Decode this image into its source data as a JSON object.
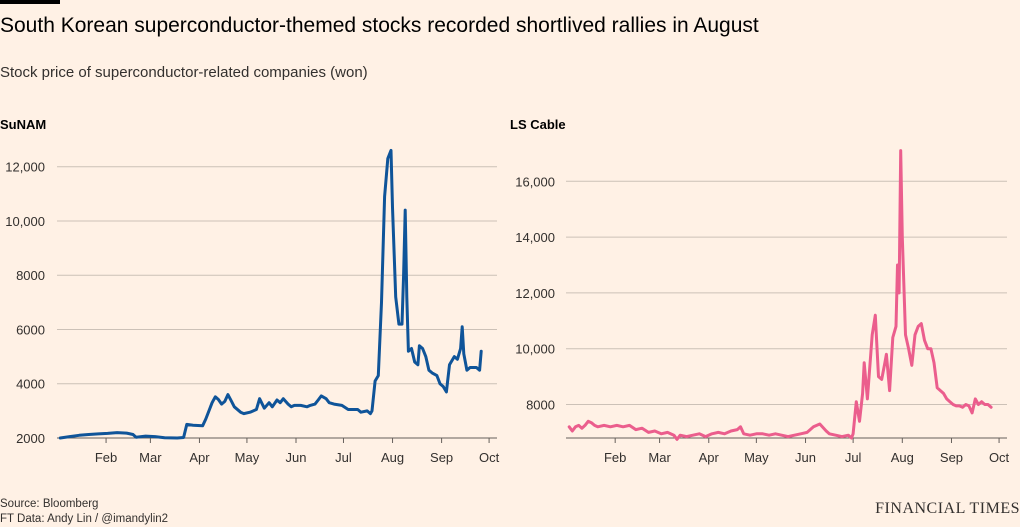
{
  "title": "South Korean superconductor-themed stocks recorded shortlived rallies in August",
  "subtitle": "Stock price of superconductor-related companies (won)",
  "source": "Source: Bloomberg",
  "credit": "FT Data: Andy Lin / @imandylin2",
  "brand": "FINANCIAL TIMES",
  "colors": {
    "background": "#fff1e5",
    "sunam": "#0f5499",
    "lscable": "#eb5e8d",
    "grid": "#ccc1b7"
  },
  "chart_data": [
    {
      "type": "line",
      "title": "SuNAM",
      "x_ticks": [
        {
          "label": "Feb",
          "day": 31
        },
        {
          "label": "Mar",
          "day": 59
        },
        {
          "label": "Apr",
          "day": 90
        },
        {
          "label": "May",
          "day": 120
        },
        {
          "label": "Jun",
          "day": 151
        },
        {
          "label": "Jul",
          "day": 181
        },
        {
          "label": "Aug",
          "day": 212
        },
        {
          "label": "Sep",
          "day": 243
        },
        {
          "label": "Oct",
          "day": 273
        }
      ],
      "xlim": [
        0,
        278
      ],
      "ylim": [
        2000,
        12800
      ],
      "y_ticks": [
        2000,
        4000,
        6000,
        8000,
        10000,
        12000
      ],
      "y_tick_labels": [
        "2000",
        "4000",
        "6000",
        "8000",
        "10,000",
        "12,000"
      ],
      "series": [
        {
          "color": "#0f5499",
          "points": [
            [
              2,
              2000
            ],
            [
              8,
              2050
            ],
            [
              14,
              2100
            ],
            [
              20,
              2130
            ],
            [
              26,
              2150
            ],
            [
              32,
              2170
            ],
            [
              38,
              2200
            ],
            [
              44,
              2180
            ],
            [
              48,
              2130
            ],
            [
              50,
              2030
            ],
            [
              56,
              2070
            ],
            [
              62,
              2050
            ],
            [
              68,
              2010
            ],
            [
              76,
              2000
            ],
            [
              80,
              2020
            ],
            [
              82,
              2500
            ],
            [
              86,
              2470
            ],
            [
              92,
              2450
            ],
            [
              94,
              2700
            ],
            [
              98,
              3300
            ],
            [
              100,
              3520
            ],
            [
              102,
              3420
            ],
            [
              104,
              3250
            ],
            [
              106,
              3350
            ],
            [
              108,
              3600
            ],
            [
              110,
              3380
            ],
            [
              112,
              3150
            ],
            [
              116,
              2950
            ],
            [
              118,
              2900
            ],
            [
              122,
              2950
            ],
            [
              126,
              3050
            ],
            [
              128,
              3450
            ],
            [
              131,
              3100
            ],
            [
              134,
              3300
            ],
            [
              136,
              3150
            ],
            [
              139,
              3400
            ],
            [
              141,
              3300
            ],
            [
              143,
              3450
            ],
            [
              146,
              3250
            ],
            [
              148,
              3150
            ],
            [
              150,
              3200
            ],
            [
              154,
              3200
            ],
            [
              158,
              3150
            ],
            [
              160,
              3200
            ],
            [
              163,
              3250
            ],
            [
              165,
              3400
            ],
            [
              167,
              3550
            ],
            [
              170,
              3450
            ],
            [
              172,
              3300
            ],
            [
              175,
              3250
            ],
            [
              180,
              3200
            ],
            [
              184,
              3050
            ],
            [
              186,
              3050
            ],
            [
              190,
              3050
            ],
            [
              192,
              2950
            ],
            [
              196,
              3000
            ],
            [
              198,
              2900
            ],
            [
              199,
              3000
            ],
            [
              201,
              4100
            ],
            [
              203,
              4300
            ],
            [
              205,
              7000
            ],
            [
              207,
              10900
            ],
            [
              208,
              11600
            ],
            [
              209,
              12300
            ],
            [
              211,
              12600
            ],
            [
              212,
              10500
            ],
            [
              214,
              7200
            ],
            [
              216,
              6200
            ],
            [
              218,
              6200
            ],
            [
              219,
              8000
            ],
            [
              220,
              10400
            ],
            [
              221,
              7200
            ],
            [
              222,
              5200
            ],
            [
              224,
              5300
            ],
            [
              226,
              4800
            ],
            [
              228,
              4700
            ],
            [
              229,
              5400
            ],
            [
              231,
              5300
            ],
            [
              233,
              5000
            ],
            [
              235,
              4500
            ],
            [
              237,
              4400
            ],
            [
              240,
              4300
            ],
            [
              242,
              4000
            ],
            [
              244,
              3900
            ],
            [
              246,
              3700
            ],
            [
              248,
              4700
            ],
            [
              251,
              5000
            ],
            [
              253,
              4900
            ],
            [
              255,
              5300
            ],
            [
              256,
              6100
            ],
            [
              257,
              5100
            ],
            [
              259,
              4500
            ],
            [
              261,
              4600
            ],
            [
              263,
              4600
            ],
            [
              265,
              4600
            ],
            [
              267,
              4500
            ],
            [
              268,
              5200
            ]
          ]
        }
      ]
    },
    {
      "type": "line",
      "title": "LS Cable",
      "x_ticks": [
        {
          "label": "Feb",
          "day": 31
        },
        {
          "label": "Mar",
          "day": 59
        },
        {
          "label": "Apr",
          "day": 90
        },
        {
          "label": "May",
          "day": 120
        },
        {
          "label": "Jun",
          "day": 151
        },
        {
          "label": "Jul",
          "day": 181
        },
        {
          "label": "Aug",
          "day": 212
        },
        {
          "label": "Sep",
          "day": 243
        },
        {
          "label": "Oct",
          "day": 273
        }
      ],
      "xlim": [
        0,
        278
      ],
      "ylim": [
        6800,
        17300
      ],
      "y_ticks": [
        8000,
        10000,
        12000,
        14000,
        16000
      ],
      "y_tick_labels": [
        "8000",
        "10,000",
        "12,000",
        "14,000",
        "16,000"
      ],
      "series": [
        {
          "color": "#eb5e8d",
          "points": [
            [
              2,
              7200
            ],
            [
              4,
              7050
            ],
            [
              6,
              7200
            ],
            [
              8,
              7250
            ],
            [
              10,
              7150
            ],
            [
              12,
              7250
            ],
            [
              14,
              7400
            ],
            [
              16,
              7350
            ],
            [
              18,
              7250
            ],
            [
              20,
              7200
            ],
            [
              24,
              7250
            ],
            [
              28,
              7200
            ],
            [
              32,
              7250
            ],
            [
              36,
              7200
            ],
            [
              40,
              7250
            ],
            [
              44,
              7100
            ],
            [
              48,
              7150
            ],
            [
              52,
              7000
            ],
            [
              56,
              7050
            ],
            [
              60,
              6950
            ],
            [
              64,
              7000
            ],
            [
              68,
              6900
            ],
            [
              70,
              6750
            ],
            [
              72,
              6900
            ],
            [
              76,
              6850
            ],
            [
              80,
              6900
            ],
            [
              84,
              6950
            ],
            [
              88,
              6850
            ],
            [
              92,
              6950
            ],
            [
              96,
              7000
            ],
            [
              100,
              6950
            ],
            [
              104,
              7050
            ],
            [
              108,
              7100
            ],
            [
              110,
              7200
            ],
            [
              112,
              6950
            ],
            [
              116,
              6900
            ],
            [
              120,
              6950
            ],
            [
              124,
              6950
            ],
            [
              128,
              6900
            ],
            [
              132,
              6950
            ],
            [
              136,
              6900
            ],
            [
              140,
              6850
            ],
            [
              144,
              6900
            ],
            [
              148,
              6950
            ],
            [
              152,
              7000
            ],
            [
              156,
              7200
            ],
            [
              160,
              7300
            ],
            [
              164,
              7050
            ],
            [
              166,
              6950
            ],
            [
              170,
              6900
            ],
            [
              174,
              6850
            ],
            [
              178,
              6900
            ],
            [
              180,
              6800
            ],
            [
              181,
              6950
            ],
            [
              183,
              8100
            ],
            [
              185,
              7400
            ],
            [
              187,
              8400
            ],
            [
              188,
              9500
            ],
            [
              190,
              8200
            ],
            [
              193,
              10500
            ],
            [
              195,
              11200
            ],
            [
              197,
              9000
            ],
            [
              199,
              8900
            ],
            [
              201,
              9500
            ],
            [
              202,
              9800
            ],
            [
              204,
              8500
            ],
            [
              206,
              10400
            ],
            [
              208,
              10800
            ],
            [
              209,
              13000
            ],
            [
              210,
              12000
            ],
            [
              211,
              17100
            ],
            [
              212,
              14000
            ],
            [
              214,
              10500
            ],
            [
              216,
              10000
            ],
            [
              218,
              9400
            ],
            [
              220,
              10500
            ],
            [
              222,
              10800
            ],
            [
              224,
              10900
            ],
            [
              226,
              10300
            ],
            [
              228,
              10000
            ],
            [
              230,
              10000
            ],
            [
              232,
              9500
            ],
            [
              234,
              8600
            ],
            [
              236,
              8500
            ],
            [
              238,
              8400
            ],
            [
              240,
              8200
            ],
            [
              242,
              8100
            ],
            [
              244,
              8000
            ],
            [
              246,
              7950
            ],
            [
              248,
              7950
            ],
            [
              250,
              7900
            ],
            [
              252,
              8000
            ],
            [
              254,
              7950
            ],
            [
              256,
              7700
            ],
            [
              258,
              8200
            ],
            [
              260,
              8000
            ],
            [
              262,
              8100
            ],
            [
              264,
              8000
            ],
            [
              266,
              8000
            ],
            [
              268,
              7900
            ]
          ]
        }
      ]
    }
  ]
}
